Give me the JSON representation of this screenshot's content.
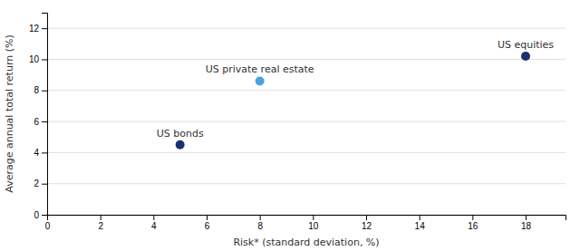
{
  "chart_data": {
    "type": "scatter",
    "x": [
      5.0,
      8.0,
      18.0
    ],
    "values": [
      4.5,
      8.6,
      10.2
    ],
    "labels": [
      "US bonds",
      "US private real estate",
      "US equities"
    ],
    "colors": [
      "#1a3070",
      "#4aa3df",
      "#1a3070"
    ],
    "xlabel": "Risk* (standard deviation, %)",
    "ylabel": "Average annual total return (%)",
    "xlim": [
      0,
      19.5
    ],
    "ylim": [
      0,
      13.0
    ],
    "xticks": [
      0,
      2,
      4,
      6,
      8,
      10,
      12,
      14,
      16,
      18
    ],
    "yticks": [
      0,
      2,
      4,
      6,
      8,
      10,
      12
    ],
    "grid": "y"
  }
}
